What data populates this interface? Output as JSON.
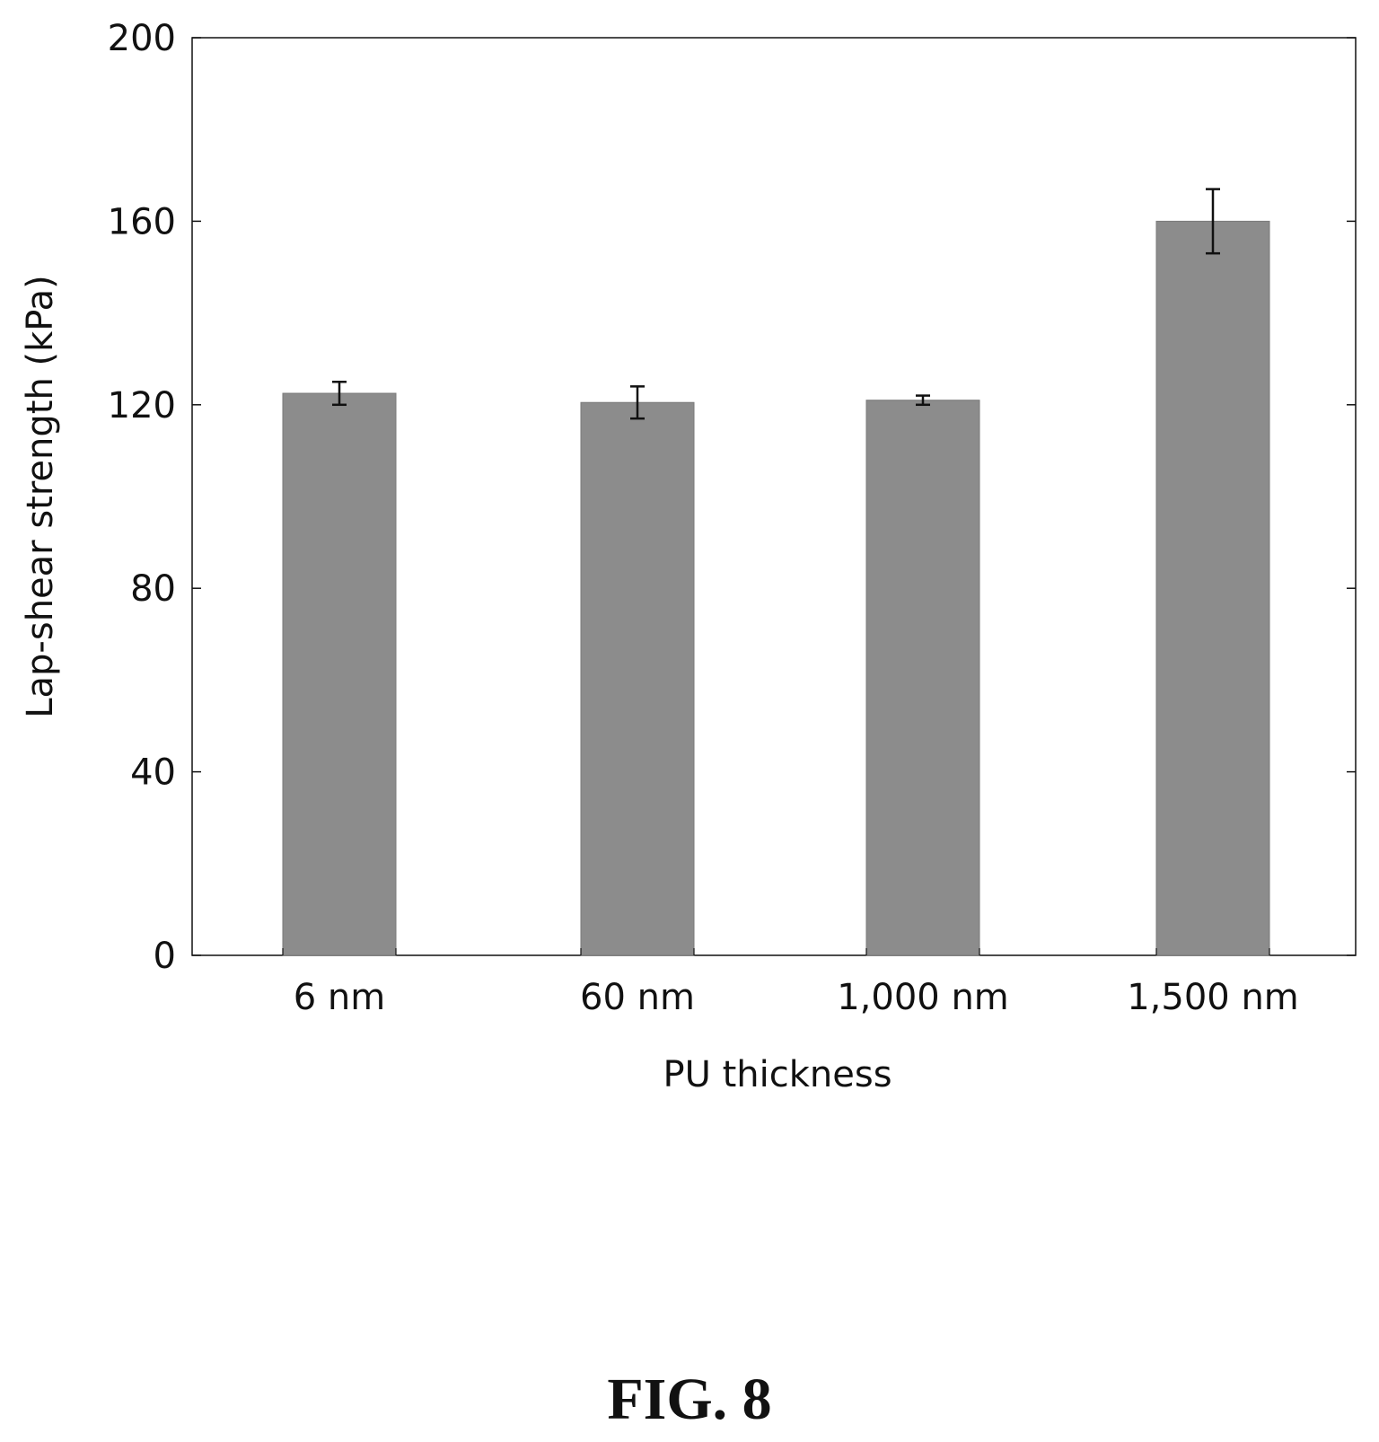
{
  "chart_data": {
    "type": "bar",
    "categories": [
      "6 nm",
      "60 nm",
      "1,000 nm",
      "1,500 nm"
    ],
    "values": [
      122.5,
      120.5,
      121,
      160
    ],
    "error": [
      2.5,
      3.5,
      1,
      7
    ],
    "xlabel": "PU thickness",
    "ylabel": "Lap-shear strength (kPa)",
    "ylim": [
      0,
      200
    ],
    "yticks": [
      "0",
      "40",
      "80",
      "120",
      "160",
      "200"
    ],
    "grid": false,
    "bar_color": "#8c8c8c"
  },
  "caption": "FIG. 8"
}
